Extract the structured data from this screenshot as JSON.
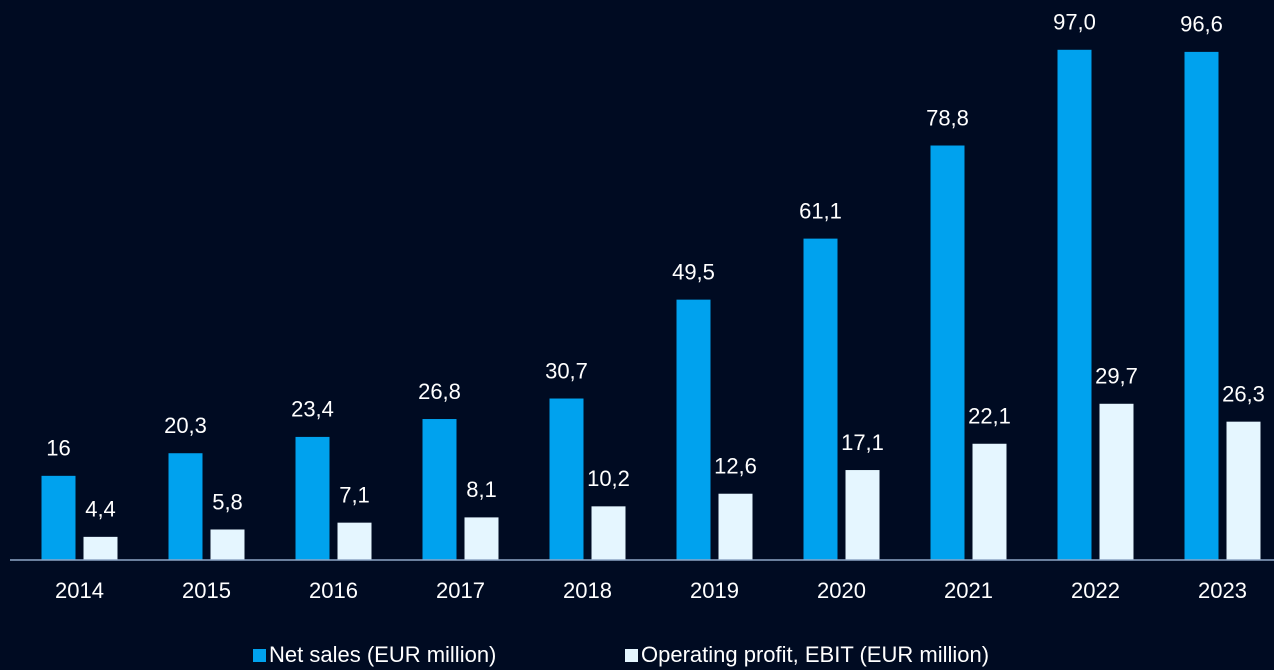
{
  "chart_data": {
    "type": "bar",
    "categories": [
      "2014",
      "2015",
      "2016",
      "2017",
      "2018",
      "2019",
      "2020",
      "2021",
      "2022",
      "2023"
    ],
    "series": [
      {
        "name": "Net sales (EUR million)",
        "color": "#00a2ee",
        "values": [
          16,
          20.3,
          23.4,
          26.8,
          30.7,
          49.5,
          61.1,
          78.8,
          97.0,
          96.6
        ],
        "value_labels": [
          "16",
          "20,3",
          "23,4",
          "26,8",
          "30,7",
          "49,5",
          "61,1",
          "78,8",
          "97,0",
          "96,6"
        ]
      },
      {
        "name": "Operating profit, EBIT (EUR million)",
        "color": "#e5f6ff",
        "values": [
          4.4,
          5.8,
          7.1,
          8.1,
          10.2,
          12.6,
          17.1,
          22.1,
          29.7,
          26.3
        ],
        "value_labels": [
          "4,4",
          "5,8",
          "7,1",
          "8,1",
          "10,2",
          "12,6",
          "17,1",
          "22,1",
          "29,7",
          "26,3"
        ]
      }
    ],
    "ylim": [
      0,
      100
    ],
    "legend": "bottom"
  }
}
